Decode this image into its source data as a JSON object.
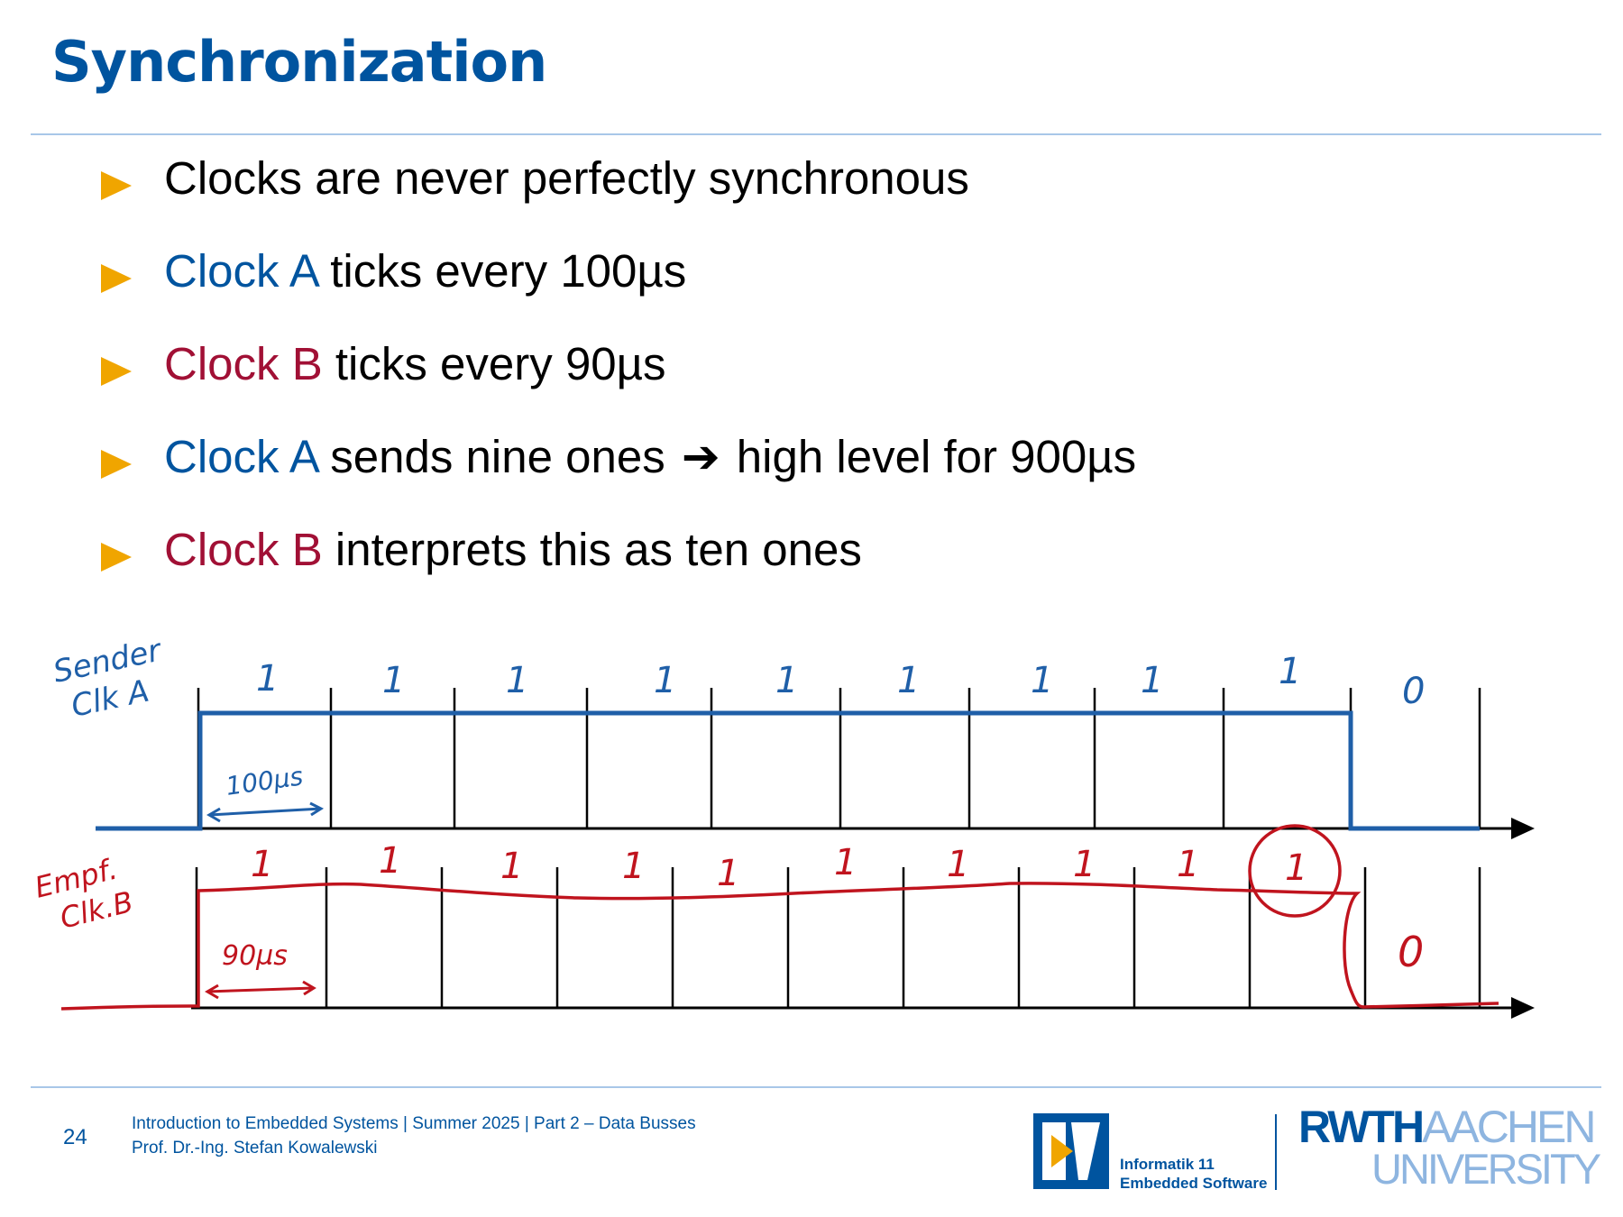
{
  "title": "Synchronization",
  "bullets": [
    {
      "plain": "Clocks are never perfectly synchronous"
    },
    {
      "highlight": "Clock A",
      "rest": " ticks every 100µs",
      "color": "#00549f"
    },
    {
      "highlight": "Clock B",
      "rest": " ticks every 90µs",
      "color": "#a11035"
    },
    {
      "highlight": "Clock A",
      "rest_before": " sends nine ones ",
      "arrow": "➔",
      "rest_after": " high level for 900µs",
      "color": "#00549f"
    },
    {
      "highlight": "Clock B",
      "rest": " interprets this as ten ones",
      "color": "#a11035"
    }
  ],
  "diagram": {
    "sender": {
      "label_line1": "Sender",
      "label_line2": "Clk A",
      "bits": [
        "1",
        "1",
        "1",
        "1",
        "1",
        "1",
        "1",
        "1",
        "1",
        "0"
      ],
      "period_label": "100µs",
      "color": "#1f5fa8"
    },
    "receiver": {
      "label_line1": "Empf.",
      "label_line2": "Clk.B",
      "bits": [
        "1",
        "1",
        "1",
        "1",
        "1",
        "1",
        "1",
        "1",
        "1",
        "1",
        "0"
      ],
      "period_label": "90µs",
      "color": "#c0141e"
    }
  },
  "footer": {
    "page_number": "24",
    "course": "Introduction to Embedded Systems | Summer 2025 | Part 2 – Data Busses",
    "author": "Prof. Dr.-Ing. Stefan Kowalewski",
    "institute_line1": "Informatik 11",
    "institute_line2": "Embedded Software",
    "university_part1": "RWTH",
    "university_part2": "AACHEN",
    "university_part3": "UNIVERSITY"
  }
}
